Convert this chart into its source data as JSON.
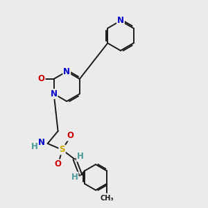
{
  "bg_color": "#ebebeb",
  "bond_color": "#1a1a1a",
  "atom_colors": {
    "N": "#0000cc",
    "O": "#cc0000",
    "S": "#ccaa00",
    "H": "#4a9a9a",
    "C": "#1a1a1a"
  },
  "font_size": 8.5,
  "bond_lw": 1.4,
  "dbo": 0.07
}
